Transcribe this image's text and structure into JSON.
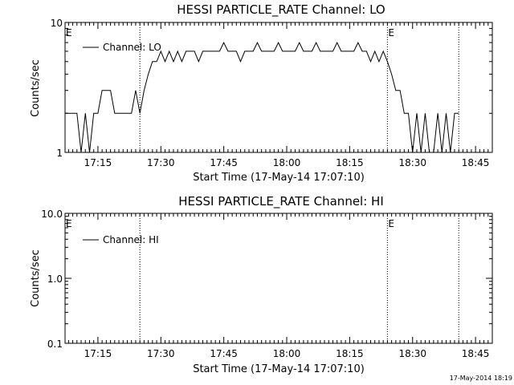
{
  "footer_timestamp": "17-May-2014 18:19",
  "chart_data": [
    {
      "type": "line",
      "title": "HESSI PARTICLE_RATE Channel: LO",
      "xlabel": "Start Time (17-May-14 17:07:10)",
      "ylabel": "Counts/sec",
      "yscale": "log",
      "ylim": [
        1,
        10
      ],
      "ytick_labels": [
        "1",
        "10"
      ],
      "xlim": [
        "17:07:10",
        "18:49:00"
      ],
      "xtick_labels": [
        "17:15",
        "17:30",
        "17:45",
        "18:00",
        "18:15",
        "18:30",
        "18:45"
      ],
      "legend": {
        "placement": "top-left",
        "entries": [
          "Channel: LO"
        ]
      },
      "vlines": [
        "17:25:00",
        "18:24:00",
        "18:41:00"
      ],
      "annotations": [
        "E",
        "E"
      ],
      "series": [
        {
          "name": "Channel: LO",
          "x": [
            "17:07:10",
            "17:08",
            "17:09",
            "17:10",
            "17:11",
            "17:12",
            "17:13",
            "17:14",
            "17:15",
            "17:16",
            "17:17",
            "17:18",
            "17:19",
            "17:20",
            "17:21",
            "17:22",
            "17:23",
            "17:24",
            "17:25",
            "17:26",
            "17:27",
            "17:28",
            "17:29",
            "17:30",
            "17:31",
            "17:32",
            "17:33",
            "17:34",
            "17:35",
            "17:36",
            "17:37",
            "17:38",
            "17:39",
            "17:40",
            "17:41",
            "17:42",
            "17:43",
            "17:44",
            "17:45",
            "17:46",
            "17:47",
            "17:48",
            "17:49",
            "17:50",
            "17:51",
            "17:52",
            "17:53",
            "17:54",
            "17:55",
            "17:56",
            "17:57",
            "17:58",
            "17:59",
            "18:00",
            "18:01",
            "18:02",
            "18:03",
            "18:04",
            "18:05",
            "18:06",
            "18:07",
            "18:08",
            "18:09",
            "18:10",
            "18:11",
            "18:12",
            "18:13",
            "18:14",
            "18:15",
            "18:16",
            "18:17",
            "18:18",
            "18:19",
            "18:20",
            "18:21",
            "18:22",
            "18:23",
            "18:24",
            "18:25",
            "18:26",
            "18:27",
            "18:28",
            "18:29",
            "18:30",
            "18:31",
            "18:32",
            "18:33",
            "18:34",
            "18:35",
            "18:36",
            "18:37",
            "18:38",
            "18:39",
            "18:40",
            "18:41"
          ],
          "y": [
            2,
            2,
            2,
            2,
            1,
            2,
            1,
            2,
            2,
            3,
            3,
            3,
            2,
            2,
            2,
            2,
            2,
            3,
            2,
            3,
            4,
            5,
            5,
            6,
            5,
            6,
            5,
            6,
            5,
            6,
            6,
            6,
            5,
            6,
            6,
            6,
            6,
            6,
            7,
            6,
            6,
            6,
            5,
            6,
            6,
            6,
            7,
            6,
            6,
            6,
            6,
            7,
            6,
            6,
            6,
            6,
            7,
            6,
            6,
            6,
            7,
            6,
            6,
            6,
            6,
            7,
            6,
            6,
            6,
            6,
            7,
            6,
            6,
            5,
            6,
            5,
            6,
            5,
            4,
            3,
            3,
            2,
            2,
            1,
            2,
            1,
            2,
            1,
            1,
            2,
            1,
            2,
            1,
            2,
            2
          ]
        }
      ]
    },
    {
      "type": "line",
      "title": "HESSI PARTICLE_RATE Channel: HI",
      "xlabel": "Start Time (17-May-14 17:07:10)",
      "ylabel": "Counts/sec",
      "yscale": "log",
      "ylim": [
        0.1,
        10
      ],
      "ytick_labels": [
        "0.1",
        "1.0",
        "10.0"
      ],
      "xlim": [
        "17:07:10",
        "18:49:00"
      ],
      "xtick_labels": [
        "17:15",
        "17:30",
        "17:45",
        "18:00",
        "18:15",
        "18:30",
        "18:45"
      ],
      "legend": {
        "placement": "top-left",
        "entries": [
          "Channel: HI"
        ]
      },
      "vlines": [
        "17:25:00",
        "18:24:00",
        "18:41:00"
      ],
      "annotations": [
        "E",
        "E"
      ],
      "series": [
        {
          "name": "Channel: HI",
          "x": [],
          "y": []
        }
      ]
    }
  ]
}
